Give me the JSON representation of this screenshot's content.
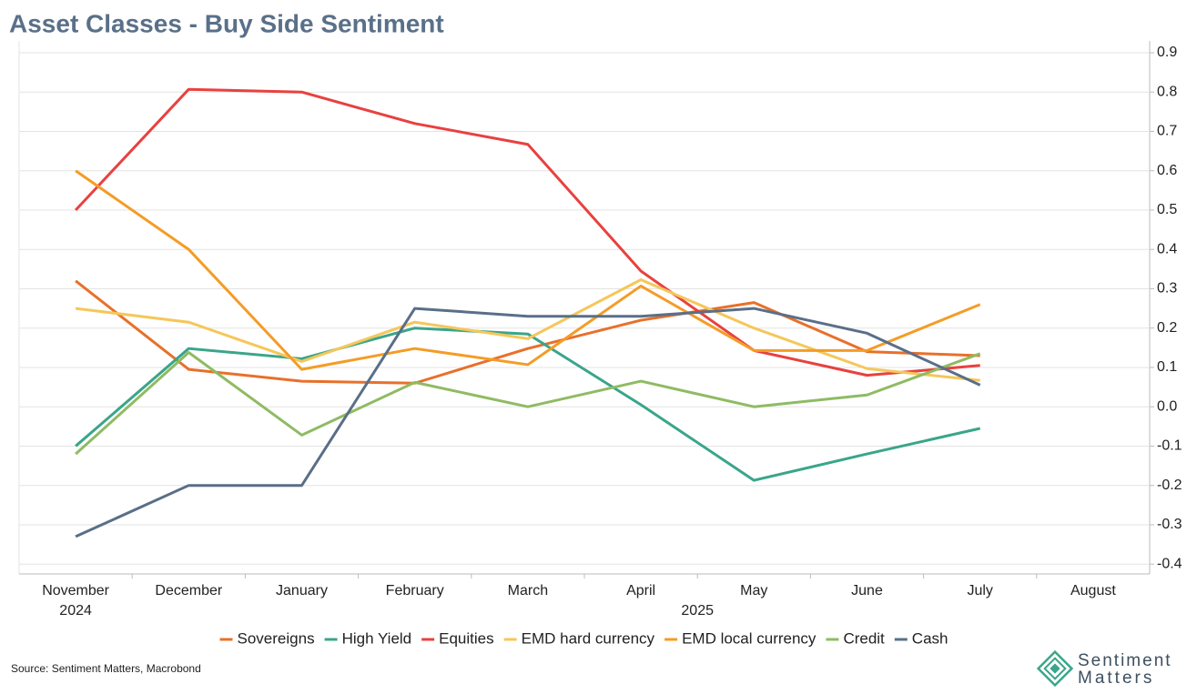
{
  "chart_data": {
    "type": "line",
    "title": "Asset Classes - Buy Side Sentiment",
    "source": "Source: Sentiment Matters, Macrobond",
    "brand": [
      "Sentiment",
      "Matters"
    ],
    "categories": [
      "November",
      "December",
      "January",
      "February",
      "March",
      "April",
      "May",
      "June",
      "July",
      "August"
    ],
    "year_groups": [
      {
        "label": "2024",
        "from": "November",
        "to": "November"
      },
      {
        "label": "2025",
        "from": "January",
        "to": "August"
      }
    ],
    "ylim": [
      -0.425,
      0.93
    ],
    "yticks": [
      0.9,
      0.8,
      0.7,
      0.6,
      0.5,
      0.4,
      0.3,
      0.2,
      0.1,
      {
        "value": 0,
        "label": "0.0"
      },
      -0.1,
      -0.2,
      -0.3,
      -0.4
    ],
    "grid": true,
    "legend": "bottom",
    "series": [
      {
        "name": "Sovereigns",
        "color": "#e8702a",
        "values": [
          0.32,
          0.095,
          0.065,
          0.06,
          0.148,
          0.22,
          0.265,
          0.14,
          0.13,
          null
        ]
      },
      {
        "name": "High Yield",
        "color": "#3aa58a",
        "values": [
          -0.1,
          0.148,
          0.122,
          0.2,
          0.185,
          0.005,
          -0.187,
          -0.12,
          -0.055,
          null
        ]
      },
      {
        "name": "Equities",
        "color": "#e8413f",
        "values": [
          0.5,
          0.807,
          0.8,
          0.72,
          0.667,
          0.345,
          0.143,
          0.08,
          0.105,
          null
        ]
      },
      {
        "name": "EMD hard currency",
        "color": "#f5c75a",
        "values": [
          0.25,
          0.215,
          0.115,
          0.215,
          0.173,
          0.323,
          0.2,
          0.097,
          0.067,
          null
        ]
      },
      {
        "name": "EMD local currency",
        "color": "#f49c26",
        "values": [
          0.6,
          0.4,
          0.095,
          0.148,
          0.107,
          0.307,
          0.143,
          0.143,
          0.26,
          null
        ]
      },
      {
        "name": "Credit",
        "color": "#8fbb63",
        "values": [
          -0.12,
          0.138,
          -0.072,
          0.062,
          0,
          0.065,
          0,
          0.03,
          0.135,
          null
        ]
      },
      {
        "name": "Cash",
        "color": "#596f88",
        "values": [
          -0.33,
          -0.2,
          -0.2,
          0.25,
          0.23,
          0.23,
          0.25,
          0.187,
          0.055,
          null
        ]
      }
    ]
  }
}
